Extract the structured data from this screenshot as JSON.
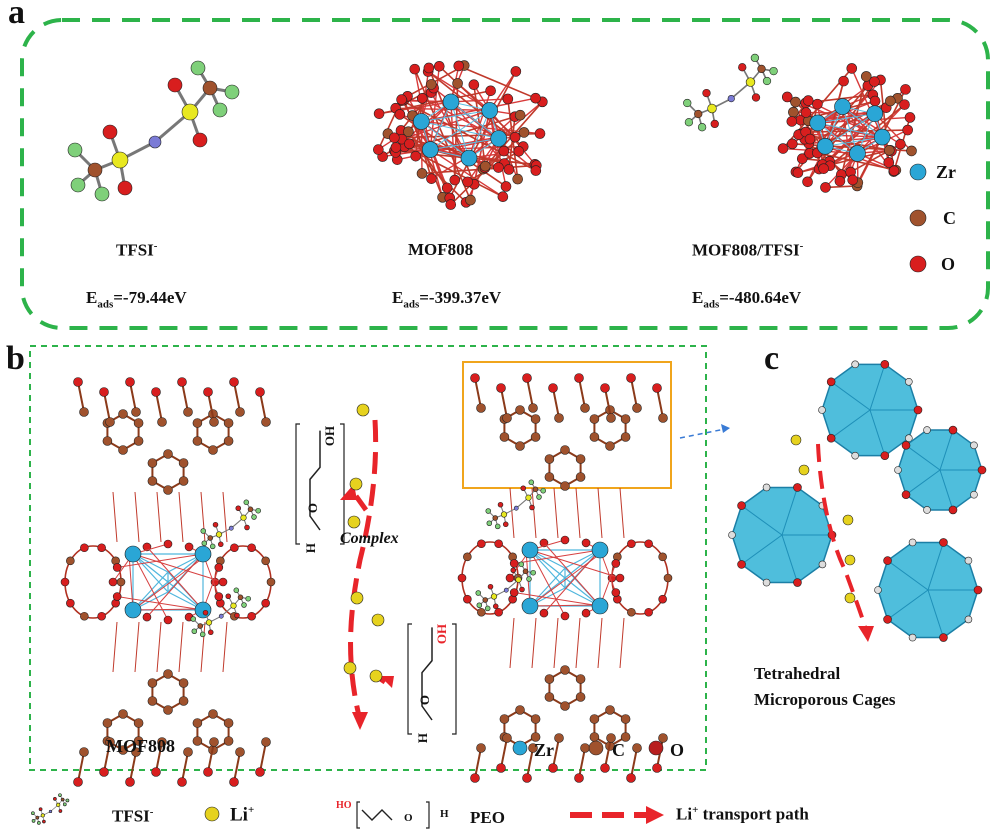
{
  "panels": {
    "a": {
      "letter": "a",
      "labels": [
        {
          "name": "TFSI",
          "sup": "-",
          "energy_prefix": "E",
          "energy_sub": "ads",
          "energy_value": "=-79.44eV"
        },
        {
          "name": "MOF808",
          "sup": "",
          "energy_prefix": "E",
          "energy_sub": "ads",
          "energy_value": "=-399.37eV"
        },
        {
          "name": "MOF808/TFSI",
          "sup": "-",
          "energy_prefix": "E",
          "energy_sub": "ads",
          "energy_value": "=-480.64eV"
        }
      ],
      "legend": [
        {
          "label": "Zr",
          "color": "#2aa6d6"
        },
        {
          "label": "C",
          "color": "#a06a36"
        },
        {
          "label": "O",
          "color": "#d81e1e"
        }
      ]
    },
    "b": {
      "letter": "b",
      "mof_label": "MOF808",
      "complex_label": "Complex",
      "peo_oh": "OH",
      "peo_o": "O",
      "peo_h": "H",
      "legend": [
        {
          "label": "Zr",
          "color": "#2aa6d6"
        },
        {
          "label": "C",
          "color": "#a06a36"
        },
        {
          "label": "O",
          "color": "#b81e1e"
        }
      ]
    },
    "c": {
      "letter": "c",
      "caption_line1": "Tetrahedral",
      "caption_line2": "Microporous Cages"
    }
  },
  "bottom_legend": {
    "tfsi_name": "TFSI",
    "tfsi_sup": "-",
    "li_name": "Li",
    "li_sup": "+",
    "peo_name": "PEO",
    "peo_ho": "HO",
    "peo_o": "O",
    "peo_h": "H",
    "path_label_main": "Li",
    "path_label_sup": "+",
    "path_label_rest": " transport path"
  },
  "colors": {
    "frame_green": "#2db34a",
    "zr": "#2aa6d6",
    "carbon": "#a0522d",
    "oxygen": "#d81e1e",
    "lithium": "#e6d21e",
    "fluorine": "#7fd07a",
    "sulfur": "#e8e820",
    "path_red": "#e8242a",
    "highlight_orange": "#f0a51c",
    "cage_blue": "#3cb7d8"
  }
}
